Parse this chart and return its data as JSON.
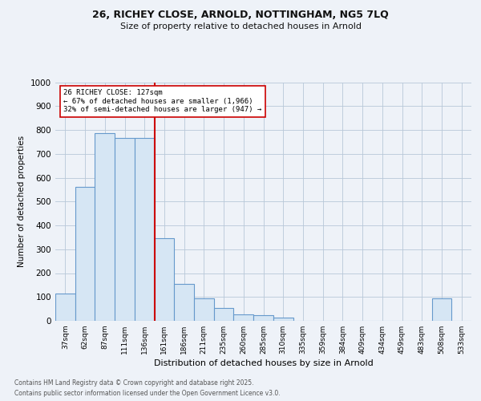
{
  "title_line1": "26, RICHEY CLOSE, ARNOLD, NOTTINGHAM, NG5 7LQ",
  "title_line2": "Size of property relative to detached houses in Arnold",
  "xlabel": "Distribution of detached houses by size in Arnold",
  "ylabel": "Number of detached properties",
  "categories": [
    "37sqm",
    "62sqm",
    "87sqm",
    "111sqm",
    "136sqm",
    "161sqm",
    "186sqm",
    "211sqm",
    "235sqm",
    "260sqm",
    "285sqm",
    "310sqm",
    "335sqm",
    "359sqm",
    "384sqm",
    "409sqm",
    "434sqm",
    "459sqm",
    "483sqm",
    "508sqm",
    "533sqm"
  ],
  "values": [
    113,
    560,
    785,
    765,
    765,
    345,
    155,
    95,
    55,
    28,
    22,
    15,
    0,
    0,
    0,
    0,
    0,
    0,
    0,
    95,
    0
  ],
  "bar_color": "#d6e6f4",
  "bar_edge_color": "#6699cc",
  "vline_color": "#cc0000",
  "vline_x": 4.5,
  "annotation_text": "26 RICHEY CLOSE: 127sqm\n← 67% of detached houses are smaller (1,966)\n32% of semi-detached houses are larger (947) →",
  "annotation_box_color": "#ffffff",
  "annotation_box_edge_color": "#cc0000",
  "footnote1": "Contains HM Land Registry data © Crown copyright and database right 2025.",
  "footnote2": "Contains public sector information licensed under the Open Government Licence v3.0.",
  "background_color": "#eef2f8",
  "plot_bg_color": "#eef2f8",
  "ylim": [
    0,
    1000
  ],
  "yticks": [
    0,
    100,
    200,
    300,
    400,
    500,
    600,
    700,
    800,
    900,
    1000
  ]
}
